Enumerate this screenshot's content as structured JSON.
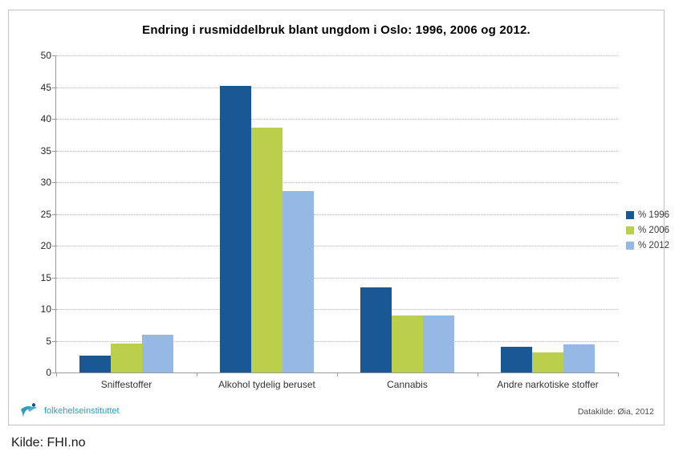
{
  "figure": {
    "footer_logo_text": "folkehelseinstituttet",
    "footer_source": "Datakilde: Øia, 2012"
  },
  "caption": "Kilde: FHI.no",
  "chart_data": {
    "type": "bar",
    "title": "Endring i rusmiddelbruk blant ungdom i Oslo: 1996, 2006 og 2012.",
    "categories": [
      "Sniffestoffer",
      "Alkohol tydelig beruset",
      "Cannabis",
      "Andre narkotiske stoffer"
    ],
    "series": [
      {
        "name": "% 1996",
        "color": "#1a5795",
        "values": [
          2.6,
          45.2,
          13.4,
          4.1
        ]
      },
      {
        "name": "% 2006",
        "color": "#bccf4d",
        "values": [
          4.5,
          38.6,
          9.0,
          3.2
        ]
      },
      {
        "name": "% 2012",
        "color": "#95b9e4",
        "values": [
          6.0,
          28.6,
          9.0,
          4.4
        ]
      }
    ],
    "xlabel": "",
    "ylabel": "",
    "ylim": [
      0,
      50
    ],
    "ytick_step": 5,
    "grid": "horizontal-dotted",
    "legend_position": "right",
    "colors": {
      "axis": "#9a9a9a",
      "gridline": "#b5b5b5",
      "logo_teal": "#2b9fbc",
      "logo_dark_blue": "#15508c"
    }
  }
}
